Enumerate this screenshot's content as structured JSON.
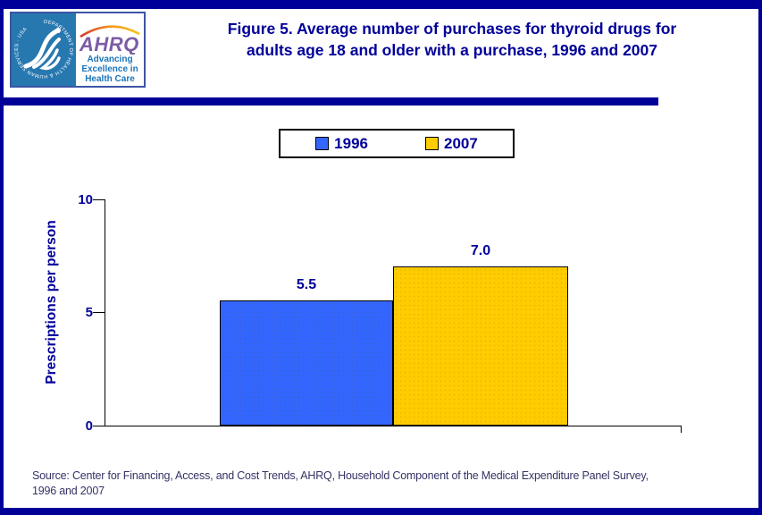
{
  "header": {
    "logo": {
      "hhs_seal_text": "DEPARTMENT OF HEALTH & HUMAN SERVICES · USA",
      "ahrq_name": "AHRQ",
      "tagline_line1": "Advancing",
      "tagline_line2": "Excellence in",
      "tagline_line3": "Health Care"
    },
    "title_line1": "Figure 5. Average number of purchases for thyroid drugs for",
    "title_line2": "adults age 18 and older with a purchase, 1996 and 2007"
  },
  "legend": {
    "items": [
      {
        "label": "1996",
        "color": "#3366FF"
      },
      {
        "label": "2007",
        "color": "#FFCC00"
      }
    ]
  },
  "chart_data": {
    "type": "bar",
    "title": "Figure 5. Average number of purchases for thyroid drugs for adults age 18 and older with a purchase, 1996 and 2007",
    "categories": [
      "1996",
      "2007"
    ],
    "values": [
      5.5,
      7.0
    ],
    "value_labels": [
      "5.5",
      "7.0"
    ],
    "bar_colors": [
      "#3366FF",
      "#FFCC00"
    ],
    "xlabel": "",
    "ylabel": "Prescriptions per person",
    "ylim": [
      0,
      10
    ],
    "yticks": [
      0,
      5,
      10
    ],
    "ytick_labels_top_to_bottom": [
      "10",
      "5",
      "0"
    ],
    "grid": false,
    "legend_position": "top-center"
  },
  "colors": {
    "accent_navy": "#000099",
    "axis_black": "#000000",
    "source_text": "#333366",
    "hhs_blue": "#2878B0",
    "ahrq_purple": "#7B5CA5",
    "ahrq_tagline_blue": "#1B75BB"
  },
  "footer": {
    "source_line1": "Source: Center for Financing, Access, and Cost Trends, AHRQ, Household Component of the Medical Expenditure Panel Survey,",
    "source_line2": "1996 and 2007"
  }
}
